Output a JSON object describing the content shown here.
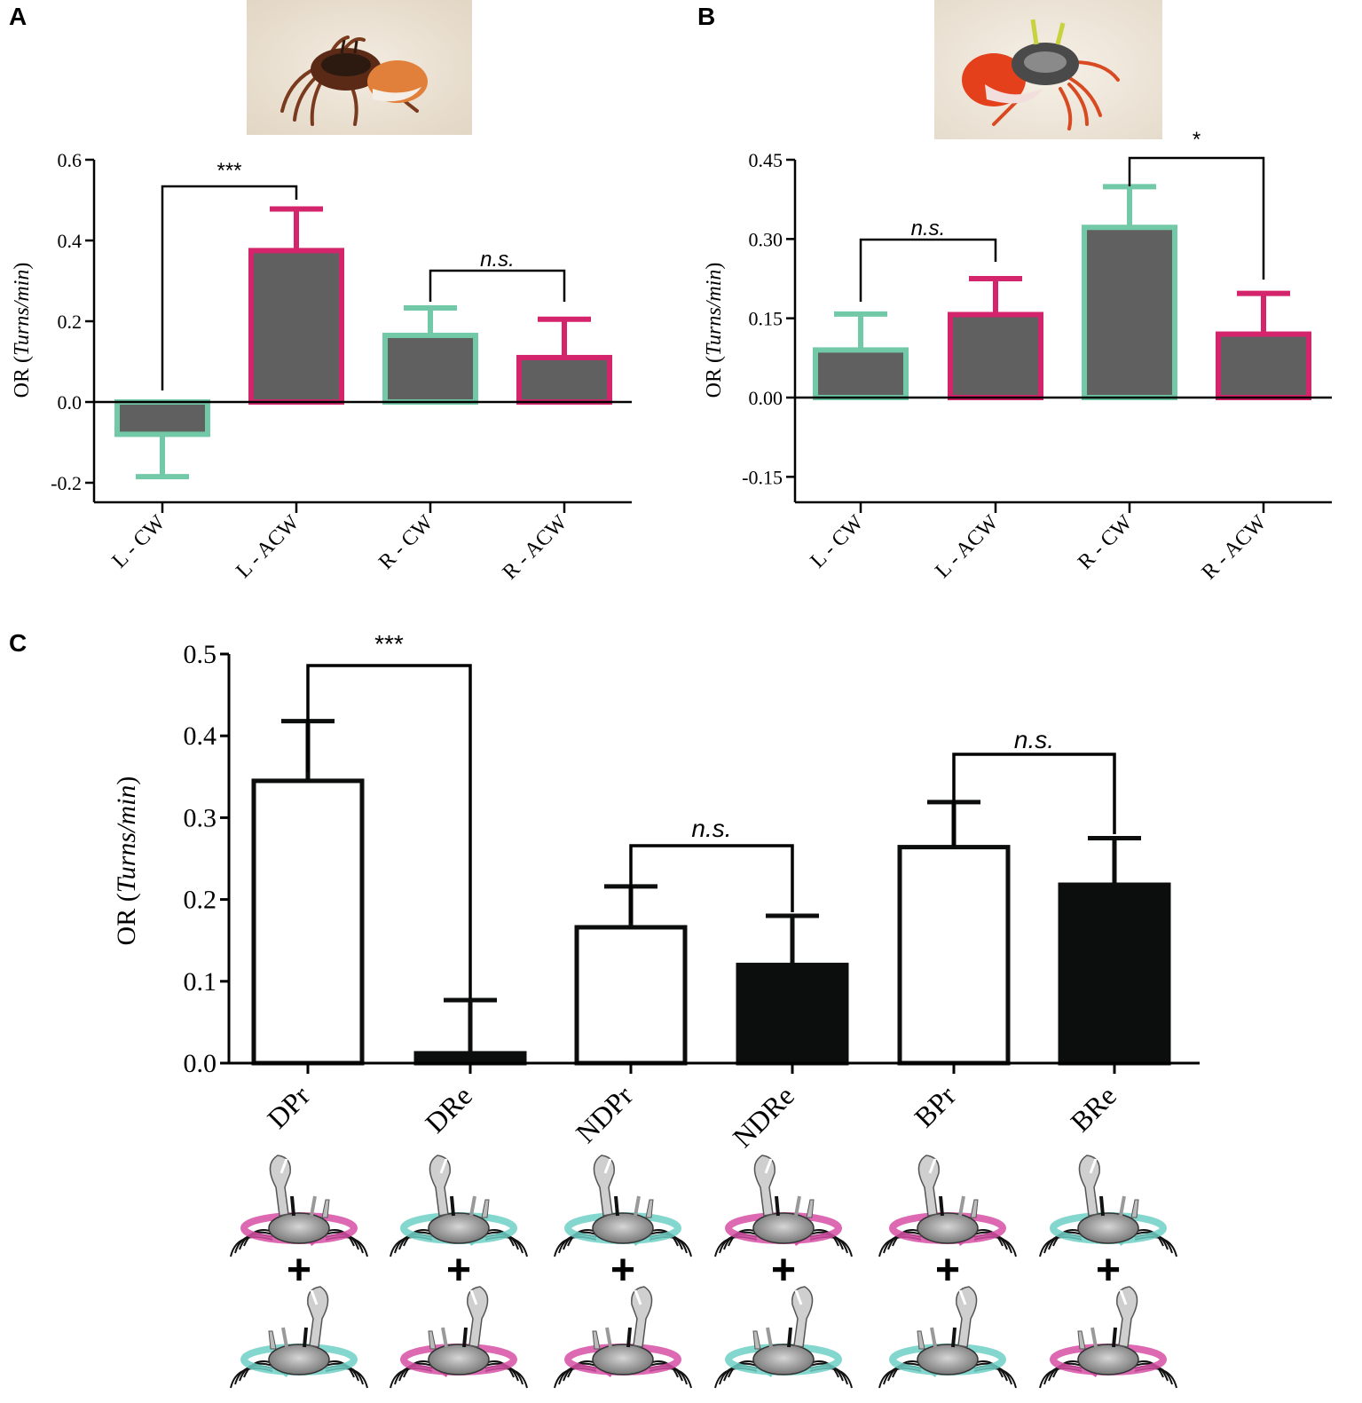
{
  "panels": {
    "a": "A",
    "b": "B",
    "c": "C"
  },
  "colors": {
    "green": "#72c9a7",
    "magenta": "#d4246b",
    "bar_fill": "#606060",
    "black": "#0c0e0e",
    "white": "#ffffff",
    "teal_arrow": "#6fd0c6",
    "pink_arrow": "#d64fa4"
  },
  "chart_data": [
    {
      "id": "A",
      "type": "bar",
      "ylabel_prefix": "OR (",
      "ylabel_italic": "Turns/min",
      "ylabel_suffix": ")",
      "ylim": [
        -0.25,
        0.6
      ],
      "yticks": [
        -0.2,
        0.0,
        0.2,
        0.4,
        0.6
      ],
      "ytick_labels": [
        "-0.2",
        "0.0",
        "0.2",
        "0.4",
        "0.6"
      ],
      "categories": [
        "L - CW",
        "L - ACW",
        "R - CW",
        "R - ACW"
      ],
      "values": [
        -0.08,
        0.375,
        0.165,
        0.11
      ],
      "errors": [
        0.105,
        0.103,
        0.068,
        0.095
      ],
      "edge_colors": [
        "green",
        "magenta",
        "green",
        "magenta"
      ],
      "brackets": [
        {
          "from": 0,
          "to": 1,
          "label": "***",
          "italic": false
        },
        {
          "from": 2,
          "to": 3,
          "label": "n.s.",
          "italic": true
        }
      ]
    },
    {
      "id": "B",
      "type": "bar",
      "ylabel_prefix": "OR (",
      "ylabel_italic": "Turns/min",
      "ylabel_suffix": ")",
      "ylim": [
        -0.2,
        0.45
      ],
      "yticks": [
        -0.15,
        0.0,
        0.15,
        0.3,
        0.45
      ],
      "ytick_labels": [
        "-0.15",
        "0.00",
        "0.15",
        "0.30",
        "0.45"
      ],
      "categories": [
        "L - CW",
        "L - ACW",
        "R - CW",
        "R - ACW"
      ],
      "values": [
        0.09,
        0.157,
        0.322,
        0.12
      ],
      "errors": [
        0.068,
        0.068,
        0.077,
        0.077
      ],
      "edge_colors": [
        "green",
        "magenta",
        "green",
        "magenta"
      ],
      "brackets": [
        {
          "from": 0,
          "to": 1,
          "label": "n.s.",
          "italic": true
        },
        {
          "from": 2,
          "to": 3,
          "label": "*",
          "italic": false
        }
      ]
    },
    {
      "id": "C",
      "type": "bar",
      "ylabel_prefix": "OR (",
      "ylabel_italic": "Turns/min",
      "ylabel_suffix": ")",
      "ylim": [
        0.0,
        0.5
      ],
      "yticks": [
        0.0,
        0.1,
        0.2,
        0.3,
        0.4,
        0.5
      ],
      "ytick_labels": [
        "0.0",
        "0.1",
        "0.2",
        "0.3",
        "0.4",
        "0.5"
      ],
      "categories": [
        "DPr",
        "DRe",
        "NDPr",
        "NDRe",
        "BPr",
        "BRe"
      ],
      "values": [
        0.345,
        0.012,
        0.166,
        0.12,
        0.264,
        0.218
      ],
      "errors": [
        0.073,
        0.065,
        0.05,
        0.06,
        0.055,
        0.057
      ],
      "fills": [
        "white",
        "black",
        "white",
        "black",
        "white",
        "black"
      ],
      "brackets": [
        {
          "from": 0,
          "to": 1,
          "label": "***",
          "italic": false
        },
        {
          "from": 2,
          "to": 3,
          "label": "n.s.",
          "italic": true
        },
        {
          "from": 4,
          "to": 5,
          "label": "n.s.",
          "italic": true
        }
      ]
    }
  ],
  "crab_icons": [
    {
      "top_arrow": "pink_arrow",
      "bottom_arrow": "teal_arrow"
    },
    {
      "top_arrow": "teal_arrow",
      "bottom_arrow": "pink_arrow"
    },
    {
      "top_arrow": "teal_arrow",
      "bottom_arrow": "pink_arrow"
    },
    {
      "top_arrow": "pink_arrow",
      "bottom_arrow": "teal_arrow"
    },
    {
      "top_arrow": "pink_arrow",
      "bottom_arrow": "teal_arrow"
    },
    {
      "top_arrow": "teal_arrow",
      "bottom_arrow": "pink_arrow"
    }
  ],
  "plus_sign": "+"
}
